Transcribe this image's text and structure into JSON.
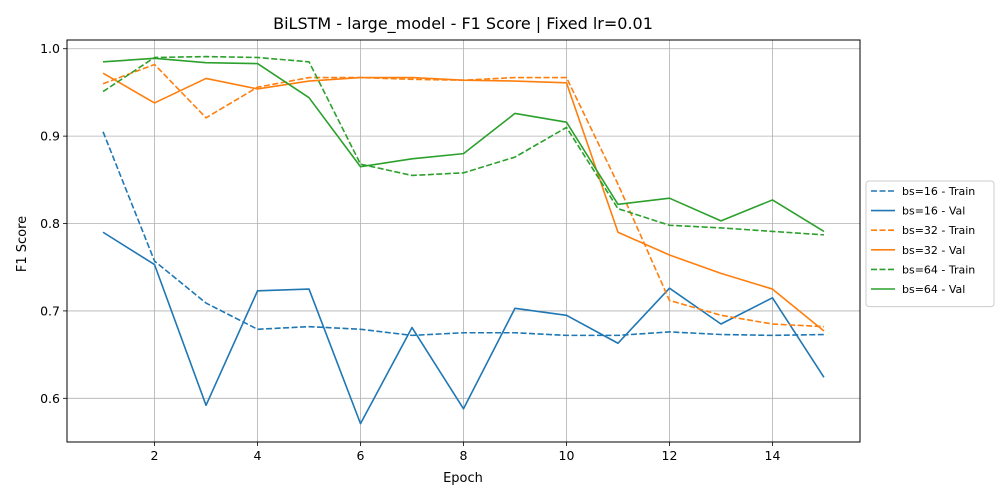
{
  "chart_data": {
    "type": "line",
    "title": "BiLSTM - large_model - F1 Score | Fixed lr=0.01",
    "xlabel": "Epoch",
    "ylabel": "F1 Score",
    "xlim": [
      0.3,
      15.7
    ],
    "ylim": [
      0.55,
      1.01
    ],
    "xticks": [
      2,
      4,
      6,
      8,
      10,
      12,
      14
    ],
    "yticks": [
      0.6,
      0.7,
      0.8,
      0.9,
      1.0
    ],
    "ytick_labels": [
      "0.6",
      "0.7",
      "0.8",
      "0.9",
      "1.0"
    ],
    "grid": true,
    "legend_position": "center-right-outside",
    "x": [
      1,
      2,
      3,
      4,
      5,
      6,
      7,
      8,
      9,
      10,
      11,
      12,
      13,
      14,
      15
    ],
    "series": [
      {
        "name": "bs=16 - Train",
        "color": "#1f77b4",
        "dash": true,
        "values": [
          0.905,
          0.757,
          0.709,
          0.679,
          0.682,
          0.679,
          0.672,
          0.675,
          0.675,
          0.672,
          0.672,
          0.676,
          0.673,
          0.672,
          0.673
        ]
      },
      {
        "name": "bs=16 - Val",
        "color": "#1f77b4",
        "dash": false,
        "values": [
          0.79,
          0.753,
          0.592,
          0.723,
          0.725,
          0.571,
          0.681,
          0.588,
          0.703,
          0.695,
          0.663,
          0.726,
          0.685,
          0.715,
          0.624
        ]
      },
      {
        "name": "bs=32 - Train",
        "color": "#ff7f0e",
        "dash": true,
        "values": [
          0.96,
          0.982,
          0.921,
          0.956,
          0.967,
          0.967,
          0.965,
          0.964,
          0.967,
          0.967,
          0.845,
          0.712,
          0.695,
          0.685,
          0.682
        ]
      },
      {
        "name": "bs=32 - Val",
        "color": "#ff7f0e",
        "dash": false,
        "values": [
          0.972,
          0.938,
          0.966,
          0.954,
          0.963,
          0.967,
          0.967,
          0.964,
          0.963,
          0.961,
          0.79,
          0.764,
          0.743,
          0.725,
          0.677
        ]
      },
      {
        "name": "bs=64 - Train",
        "color": "#2ca02c",
        "dash": true,
        "values": [
          0.951,
          0.99,
          0.991,
          0.99,
          0.985,
          0.868,
          0.855,
          0.858,
          0.876,
          0.91,
          0.817,
          0.798,
          0.795,
          0.791,
          0.787
        ]
      },
      {
        "name": "bs=64 - Val",
        "color": "#2ca02c",
        "dash": false,
        "values": [
          0.985,
          0.989,
          0.984,
          0.983,
          0.944,
          0.865,
          0.874,
          0.88,
          0.926,
          0.916,
          0.822,
          0.829,
          0.803,
          0.827,
          0.791
        ]
      }
    ]
  }
}
